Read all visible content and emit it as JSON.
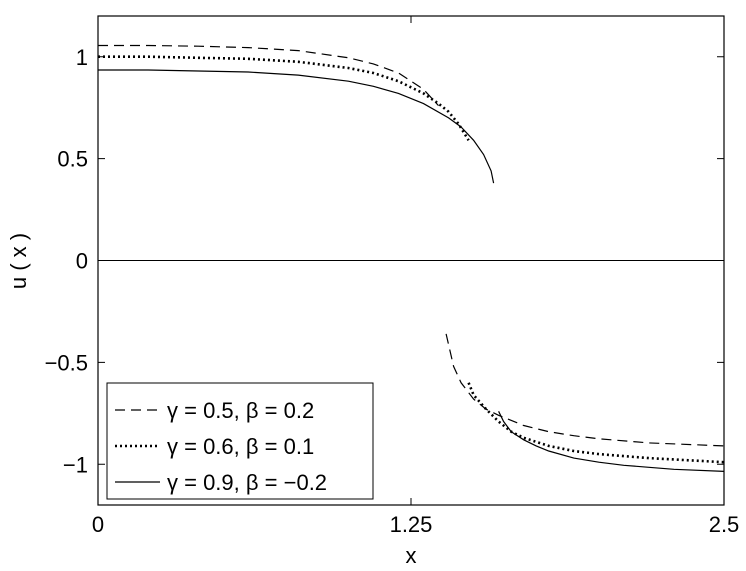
{
  "chart_data": {
    "type": "line",
    "title": "",
    "xlabel": "x",
    "ylabel": "u ( x )",
    "xlim": [
      0,
      2.5
    ],
    "ylim": [
      -1.2,
      1.2
    ],
    "x_ticks": [
      0,
      1.25,
      2.5
    ],
    "x_tick_labels": [
      "0",
      "1.25",
      "2.5"
    ],
    "y_ticks": [
      -1,
      -0.5,
      0,
      0.5,
      1
    ],
    "y_tick_labels": [
      "−1",
      "−0.5",
      "0",
      "0.5",
      "1"
    ],
    "grid": false,
    "legend_position": "bottom-left",
    "zero_line": true,
    "series": [
      {
        "name": "γ = 0.5, β = 0.2",
        "style": "dashed",
        "color": "#000000",
        "segments": [
          {
            "x": [
              0,
              0.2,
              0.4,
              0.6,
              0.8,
              1.0,
              1.1,
              1.2,
              1.3,
              1.36
            ],
            "y": [
              1.055,
              1.055,
              1.052,
              1.045,
              1.03,
              0.995,
              0.965,
              0.92,
              0.84,
              0.76
            ]
          },
          {
            "x": [
              1.39,
              1.42,
              1.45,
              1.5,
              1.55,
              1.6,
              1.7,
              1.8,
              1.9,
              2.0,
              2.2,
              2.5
            ],
            "y": [
              -0.36,
              -0.52,
              -0.6,
              -0.68,
              -0.73,
              -0.76,
              -0.81,
              -0.84,
              -0.86,
              -0.875,
              -0.895,
              -0.91
            ]
          }
        ]
      },
      {
        "name": "γ = 0.6, β = 0.1",
        "style": "dotted",
        "color": "#000000",
        "segments": [
          {
            "x": [
              0,
              0.2,
              0.4,
              0.6,
              0.8,
              1.0,
              1.1,
              1.2,
              1.3,
              1.36,
              1.4,
              1.44,
              1.48
            ],
            "y": [
              1.0,
              1.0,
              0.995,
              0.99,
              0.975,
              0.945,
              0.92,
              0.88,
              0.82,
              0.77,
              0.73,
              0.67,
              0.59
            ]
          },
          {
            "x": [
              1.48,
              1.5,
              1.55,
              1.6,
              1.65,
              1.7,
              1.8,
              1.9,
              2.0,
              2.2,
              2.5
            ],
            "y": [
              -0.6,
              -0.66,
              -0.73,
              -0.79,
              -0.84,
              -0.87,
              -0.91,
              -0.935,
              -0.95,
              -0.97,
              -0.99
            ]
          }
        ]
      },
      {
        "name": "γ = 0.9, β = −0.2",
        "style": "solid",
        "color": "#000000",
        "segments": [
          {
            "x": [
              0,
              0.2,
              0.4,
              0.6,
              0.8,
              1.0,
              1.1,
              1.2,
              1.3,
              1.4,
              1.45,
              1.5,
              1.54,
              1.57,
              1.58
            ],
            "y": [
              0.935,
              0.935,
              0.93,
              0.925,
              0.91,
              0.88,
              0.855,
              0.82,
              0.77,
              0.7,
              0.655,
              0.59,
              0.52,
              0.44,
              0.38
            ]
          },
          {
            "x": [
              1.6,
              1.62,
              1.65,
              1.7,
              1.75,
              1.8,
              1.9,
              2.0,
              2.1,
              2.2,
              2.3,
              2.5
            ],
            "y": [
              -0.74,
              -0.79,
              -0.84,
              -0.88,
              -0.91,
              -0.935,
              -0.97,
              -0.99,
              -1.005,
              -1.015,
              -1.025,
              -1.035
            ]
          }
        ]
      }
    ]
  }
}
